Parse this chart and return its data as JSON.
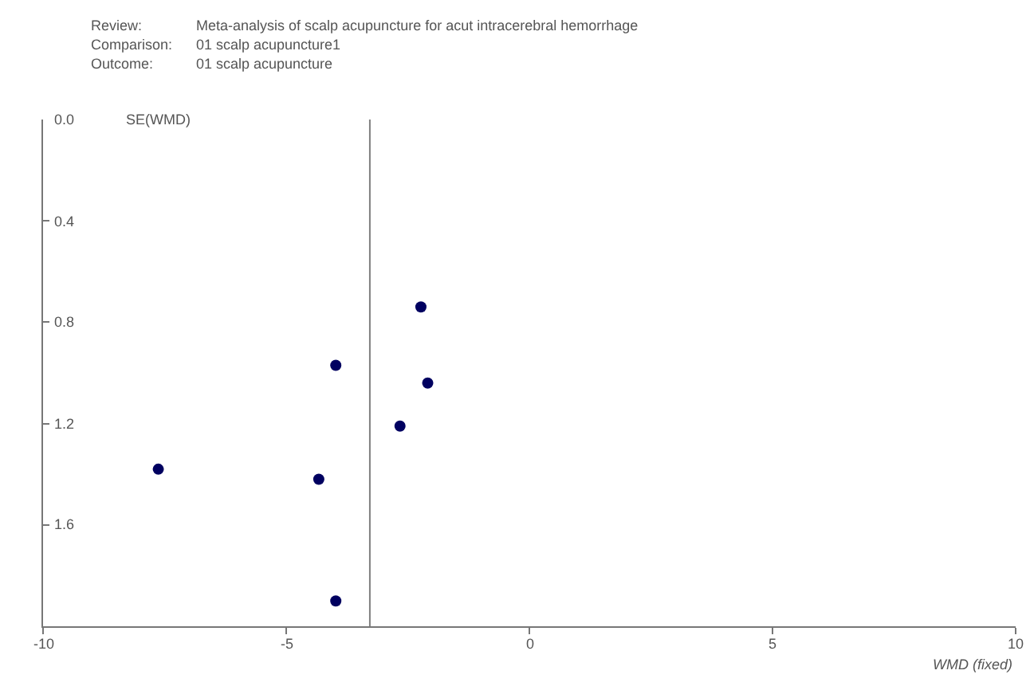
{
  "chart_data": {
    "type": "scatter",
    "annotations": [
      "Review:",
      "Meta-analysis of scalp acupuncture for acut intracerebral hemorrhage",
      "Comparison:",
      "01 scalp acupuncture1",
      "Outcome:",
      "01 scalp acupuncture"
    ],
    "xlabel": "WMD (fixed)",
    "ylabel": "SE(WMD)",
    "x": [
      -2.23,
      -3.98,
      -2.09,
      -2.66,
      -7.63,
      -4.33,
      -3.98
    ],
    "series": [
      {
        "color": "#000060",
        "values": [
          0.74,
          0.97,
          1.04,
          1.21,
          1.38,
          1.42,
          1.9
        ]
      }
    ],
    "xlim": [
      -10,
      10
    ],
    "xticks": [
      -10,
      -5,
      0,
      5,
      10
    ],
    "ylim": [
      2.0,
      0
    ],
    "yticks": [
      {
        "value": 0,
        "label": "0.0"
      },
      0.4,
      0.8,
      1.2,
      1.6
    ],
    "ref_lines": [
      {
        "axis": "x",
        "value": -3.28,
        "color": "#808080"
      }
    ],
    "grid": false,
    "marker": "circle"
  }
}
